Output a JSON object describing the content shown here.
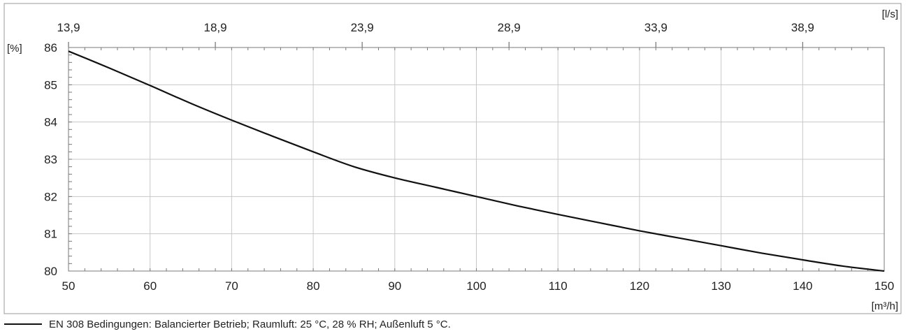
{
  "chart_data": {
    "type": "line",
    "x_unit_label": "[m³/h]",
    "y_unit_label": "[%]",
    "top_unit_label": "[l/s]",
    "xlim": [
      50,
      150
    ],
    "ylim": [
      80,
      86
    ],
    "x_ticks": [
      50,
      60,
      70,
      80,
      90,
      100,
      110,
      120,
      130,
      140,
      150
    ],
    "y_ticks": [
      80,
      81,
      82,
      83,
      84,
      85,
      86
    ],
    "top_ticks": [
      {
        "x": 50,
        "label": "13,9"
      },
      {
        "x": 68,
        "label": "18,9"
      },
      {
        "x": 86,
        "label": "23,9"
      },
      {
        "x": 104,
        "label": "28,9"
      },
      {
        "x": 122,
        "label": "33,9"
      },
      {
        "x": 140,
        "label": "38,9"
      }
    ],
    "grid": true,
    "series": [
      {
        "color": "#111111",
        "x": [
          50,
          55,
          60,
          65,
          70,
          75,
          80,
          85,
          90,
          95,
          100,
          105,
          110,
          115,
          120,
          125,
          130,
          135,
          140,
          145,
          150
        ],
        "y": [
          85.9,
          85.45,
          84.98,
          84.5,
          84.05,
          83.62,
          83.2,
          82.8,
          82.5,
          82.25,
          82.0,
          81.75,
          81.52,
          81.3,
          81.08,
          80.88,
          80.68,
          80.48,
          80.3,
          80.13,
          80.0
        ]
      }
    ]
  },
  "legend": {
    "text": "EN 308 Bedingungen: Balancierter Betrieb; Raumluft: 25 °C, 28 % RH; Außenluft 5 °C."
  }
}
